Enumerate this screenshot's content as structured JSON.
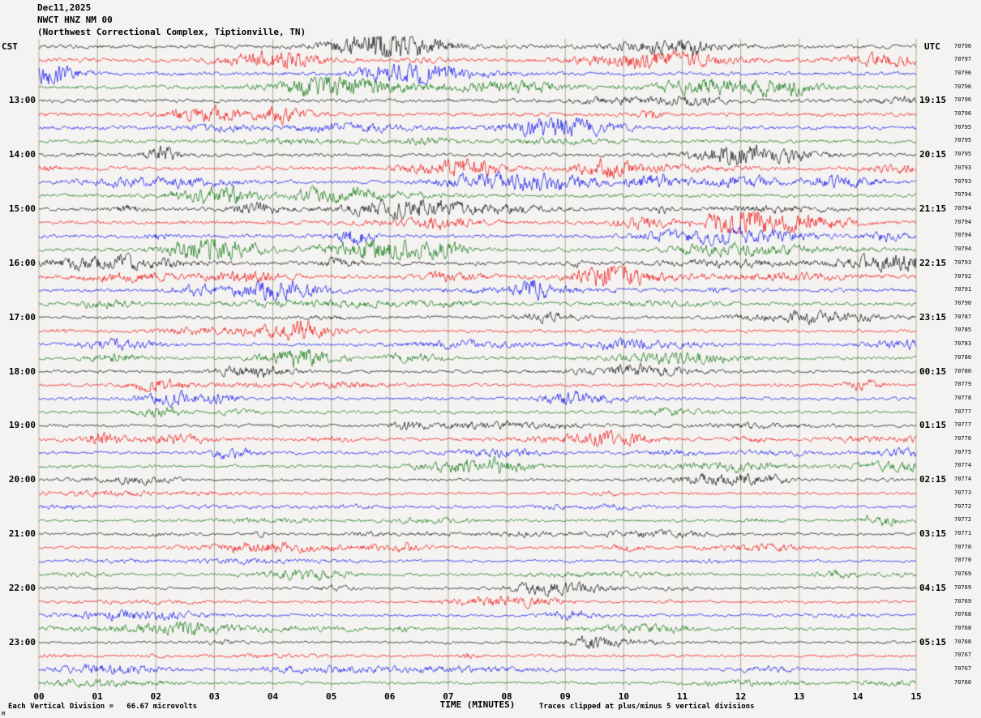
{
  "header": {
    "date": "Dec11,2025",
    "station": "NWCT HNZ NM 00",
    "location": "(Northwest Correctional Complex, Tiptionville, TN)"
  },
  "axes": {
    "left_label": "CST",
    "right_label": "UTC",
    "x_title": "TIME (MINUTES)"
  },
  "footer": {
    "left": "Each Vertical Division =   66.67 microvolts",
    "right": "Traces clipped at plus/minus 5 vertical divisions",
    "corner_mark": "M"
  },
  "chart_data": {
    "type": "line",
    "subtype": "helicorder seismogram (webicorder drum plot)",
    "title": "NWCT HNZ NM 00  Dec11,2025 (Northwest Correctional Complex, Tiptionville, TN)",
    "xlabel": "TIME (MINUTES)",
    "x_range_minutes": [
      0,
      15
    ],
    "x_ticks": [
      "00",
      "01",
      "02",
      "03",
      "04",
      "05",
      "06",
      "07",
      "08",
      "09",
      "10",
      "11",
      "12",
      "13",
      "14",
      "15"
    ],
    "rows": 48,
    "row_duration_minutes": 15,
    "grid": "vertical lines at every minute",
    "trace_color_cycle": [
      "#000000",
      "#ee0000",
      "#0000ee",
      "#007000"
    ],
    "left_axis": {
      "label": "CST",
      "times": [
        "13:00",
        "14:00",
        "15:00",
        "16:00",
        "17:00",
        "18:00",
        "19:00",
        "20:00",
        "21:00",
        "22:00",
        "23:00"
      ],
      "first_labeled_row": 4,
      "rows_per_label": 4
    },
    "right_axis": {
      "label": "UTC",
      "times": [
        "19:15",
        "20:15",
        "21:15",
        "22:15",
        "23:15",
        "00:15",
        "01:15",
        "02:15",
        "03:15",
        "04:15",
        "05:15"
      ]
    },
    "trace_ids": [
      "70796",
      "70797",
      "70796",
      "70796",
      "70796",
      "70796",
      "70795",
      "70795",
      "70795",
      "70793",
      "70793",
      "70794",
      "70794",
      "70794",
      "70794",
      "70794",
      "70793",
      "70792",
      "70791",
      "70790",
      "70787",
      "70785",
      "70783",
      "70780",
      "70780",
      "70779",
      "70778",
      "70777",
      "70777",
      "70776",
      "70775",
      "70774",
      "70774",
      "70773",
      "70772",
      "70772",
      "70771",
      "70770",
      "70770",
      "70769",
      "70769",
      "70769",
      "70768",
      "70768",
      "70768",
      "70767",
      "70767",
      "70766"
    ],
    "vertical_division_microvolts": 66.67,
    "clip_note": "Traces clipped at plus/minus 5 vertical divisions",
    "description": "Ambient seismic noise record: 48 traces of 15 minutes each covering ~12:00-24:00 CST (18:15-06:00 UTC), colors cycling black/red/blue/green, scattered noise bursts; exact waveform samples not enumerable from raster."
  }
}
